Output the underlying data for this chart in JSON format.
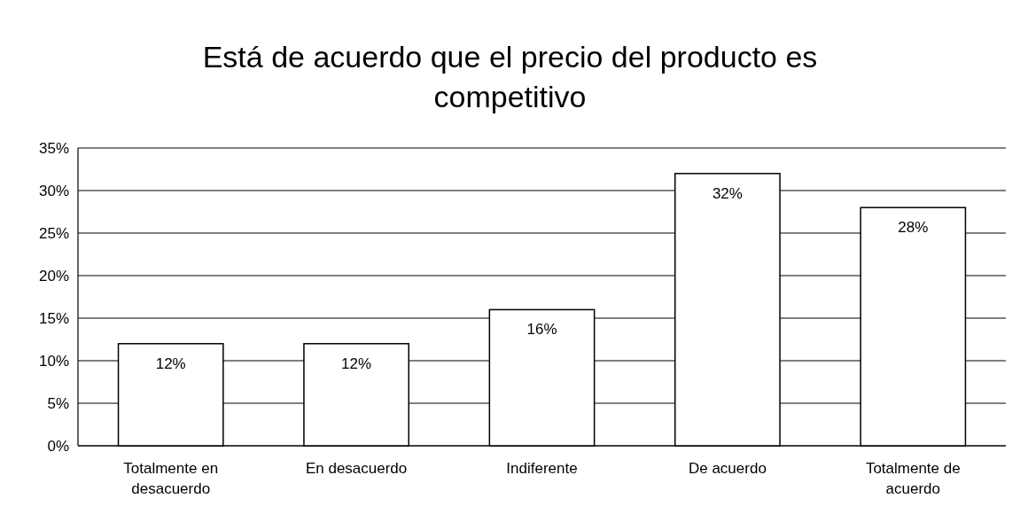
{
  "chart_data": {
    "type": "bar",
    "title": "Está de acuerdo que el precio del producto es competitivo",
    "categories": [
      "Totalmente en desacuerdo",
      "En desacuerdo",
      "Indiferente",
      "De acuerdo",
      "Totalmente de acuerdo"
    ],
    "values": [
      12,
      12,
      16,
      32,
      28
    ],
    "value_labels": [
      "12%",
      "12%",
      "16%",
      "32%",
      "28%"
    ],
    "color": "#ffffff",
    "ylim": [
      0,
      35
    ],
    "yticks": [
      {
        "value": 0,
        "label": "0%"
      },
      {
        "value": 5,
        "label": "5%"
      },
      {
        "value": 10,
        "label": "10%"
      },
      {
        "value": 15,
        "label": "15%"
      },
      {
        "value": 20,
        "label": "20%"
      },
      {
        "value": 25,
        "label": "25%"
      },
      {
        "value": 30,
        "label": "30%"
      },
      {
        "value": 35,
        "label": "35%"
      }
    ],
    "grid": "y"
  }
}
